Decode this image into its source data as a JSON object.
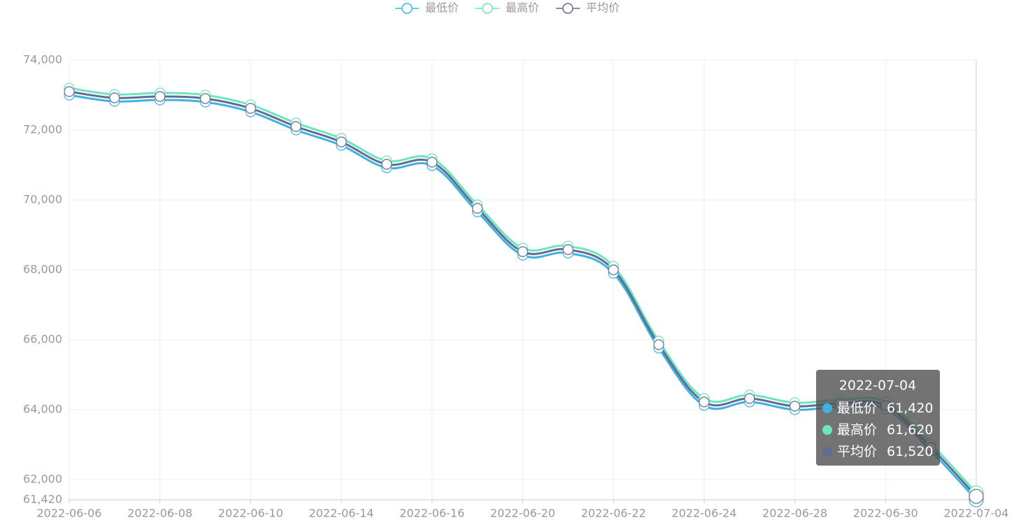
{
  "chart_data": {
    "type": "line",
    "categories": [
      "2022-06-06",
      null,
      "2022-06-08",
      null,
      "2022-06-10",
      null,
      "2022-06-14",
      null,
      "2022-06-16",
      null,
      "2022-06-20",
      null,
      "2022-06-22",
      null,
      "2022-06-24",
      null,
      "2022-06-28",
      null,
      "2022-06-30",
      null,
      "2022-07-04"
    ],
    "series": [
      {
        "name": "最低价",
        "color": "#3fb1e3",
        "values": [
          73000,
          72820,
          72860,
          72800,
          72520,
          72000,
          71560,
          70920,
          70980,
          69660,
          68420,
          68480,
          67900,
          65760,
          64120,
          64220,
          64000,
          64080,
          64020,
          62820,
          61420
        ],
        "value_labels": [
          null,
          null,
          null,
          null,
          null,
          null,
          null,
          null,
          null,
          null,
          null,
          null,
          null,
          null,
          null,
          null,
          null,
          null,
          null,
          null,
          "61,420"
        ]
      },
      {
        "name": "最高价",
        "color": "#6be6c1",
        "values": [
          73200,
          73020,
          73060,
          73000,
          72720,
          72200,
          71760,
          71120,
          71180,
          69860,
          68620,
          68680,
          68100,
          65960,
          64320,
          64420,
          64200,
          64280,
          64220,
          63020,
          61620
        ],
        "value_labels": [
          null,
          null,
          null,
          null,
          null,
          null,
          null,
          null,
          null,
          null,
          null,
          null,
          null,
          null,
          null,
          null,
          null,
          null,
          null,
          null,
          "61,620"
        ]
      },
      {
        "name": "平均价",
        "color": "#626c91",
        "values": [
          73100,
          72920,
          72960,
          72900,
          72620,
          72100,
          71660,
          71020,
          71080,
          69760,
          68520,
          68580,
          68000,
          65860,
          64220,
          64320,
          64100,
          64180,
          64120,
          62920,
          61520
        ],
        "value_labels": [
          null,
          null,
          null,
          null,
          null,
          null,
          null,
          null,
          null,
          null,
          null,
          null,
          null,
          null,
          null,
          null,
          null,
          null,
          null,
          null,
          "61,520"
        ]
      }
    ],
    "ylim": [
      61420,
      74000
    ],
    "yticks": [
      {
        "value": 61420,
        "label": "61,420"
      },
      {
        "value": 62000,
        "label": "62,000"
      },
      {
        "value": 64000,
        "label": "64,000"
      },
      {
        "value": 66000,
        "label": "66,000"
      },
      {
        "value": 68000,
        "label": "68,000"
      },
      {
        "value": 70000,
        "label": "70,000"
      },
      {
        "value": 72000,
        "label": "72,000"
      },
      {
        "value": 74000,
        "label": "74,000"
      }
    ],
    "grid": true
  }
}
